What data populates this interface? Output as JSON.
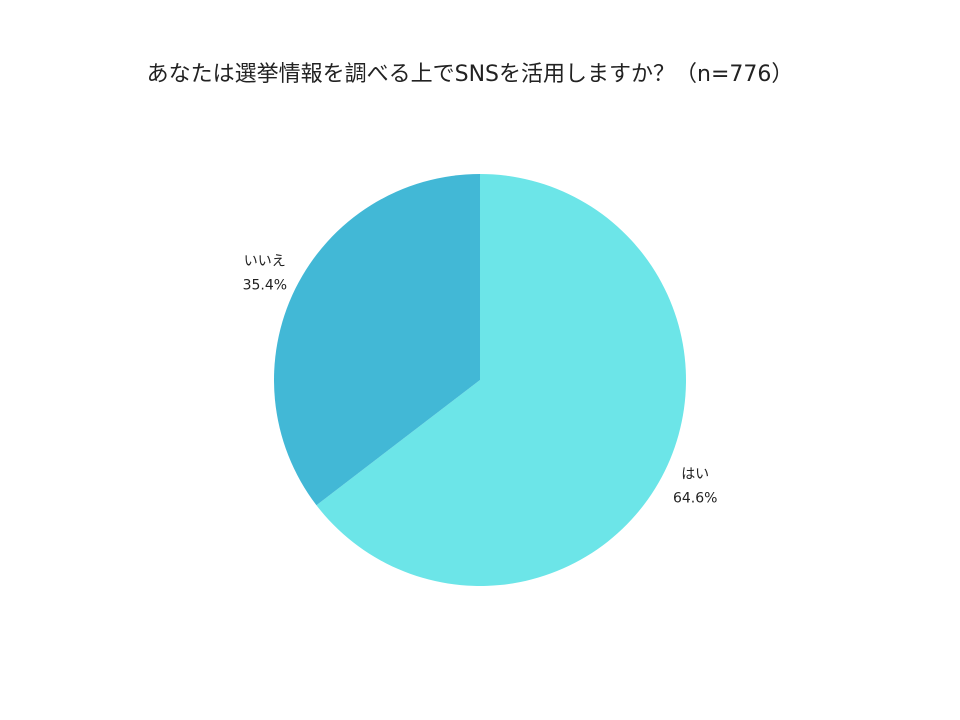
{
  "chart_data": {
    "type": "pie",
    "title": "あなたは選挙情報を調べる上でSNSを活用しますか？（n=776）",
    "categories": [
      "はい",
      "いいえ"
    ],
    "values": [
      64.6,
      35.4
    ],
    "value_labels": [
      "64.6%",
      "35.4%"
    ],
    "colors": [
      "#6ce5e8",
      "#42b8d6"
    ]
  }
}
